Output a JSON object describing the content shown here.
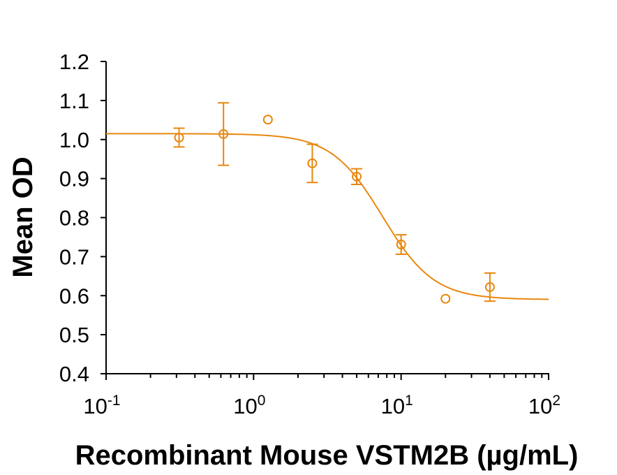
{
  "chart_data": {
    "type": "scatter",
    "title": "",
    "xlabel": "Recombinant Mouse VSTM2B (µg/mL)",
    "ylabel": "Mean OD",
    "xscale": "log",
    "xlim": [
      0.1,
      100
    ],
    "ylim": [
      0.4,
      1.2
    ],
    "x_tick_labels": [
      {
        "base": "10",
        "exp": "-1"
      },
      {
        "base": "10",
        "exp": "0"
      },
      {
        "base": "10",
        "exp": "1"
      },
      {
        "base": "10",
        "exp": "2"
      }
    ],
    "y_ticks": [
      0.4,
      0.5,
      0.6,
      0.7,
      0.8,
      0.9,
      1.0,
      1.1,
      1.2
    ],
    "y_tick_labels": [
      "0.4",
      "0.5",
      "0.6",
      "0.7",
      "0.8",
      "0.9",
      "1.0",
      "1.1",
      "1.2"
    ],
    "grid": false,
    "legend": "none",
    "color": "#E8870E",
    "series": [
      {
        "x": [
          0.3125,
          0.625,
          1.25,
          2.5,
          5,
          10,
          20,
          40
        ],
        "y": [
          1.005,
          1.014,
          1.051,
          0.939,
          0.905,
          0.731,
          0.592,
          0.622
        ],
        "error": [
          0.024,
          0.08,
          null,
          0.049,
          0.02,
          0.025,
          null,
          0.036
        ],
        "marker": "open-circle"
      }
    ],
    "fit_curve": {
      "model": "4PL",
      "top": 1.015,
      "bottom": 0.59,
      "ec50": 7.5,
      "hill": 2.5
    }
  }
}
